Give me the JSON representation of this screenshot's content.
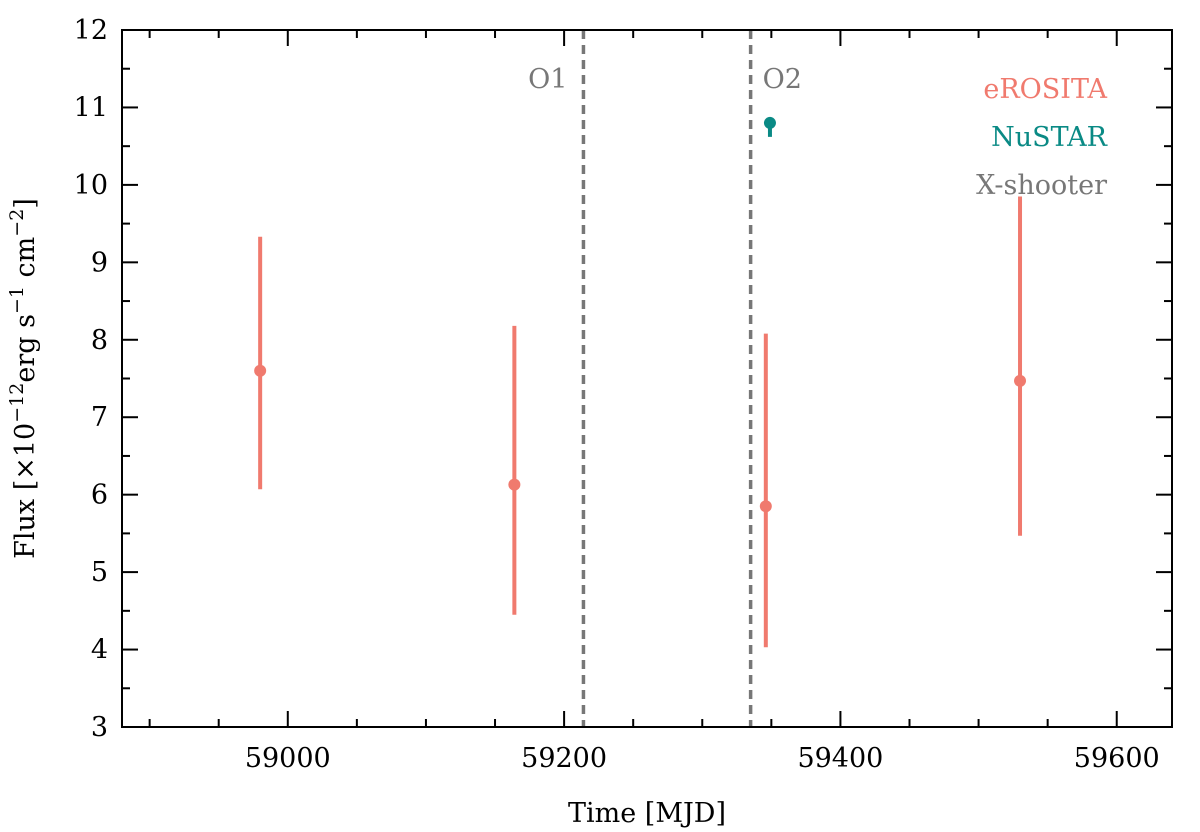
{
  "chart_data": {
    "type": "scatter",
    "xlabel": "Time [MJD]",
    "ylabel": {
      "prefix": "Flux [×10",
      "exp1": "−12",
      "mid1": "erg s",
      "exp2": "−1",
      "mid2": " cm",
      "exp3": "−2",
      "suffix": "]"
    },
    "xlim": [
      58880,
      59640
    ],
    "ylim": [
      3,
      12
    ],
    "xticks": [
      59000,
      59200,
      59400,
      59600
    ],
    "xtick_labels": [
      "59000",
      "59200",
      "59400",
      "59600"
    ],
    "yticks": [
      3,
      4,
      5,
      6,
      7,
      8,
      9,
      10,
      11,
      12
    ],
    "ytick_labels": [
      "3",
      "4",
      "5",
      "6",
      "7",
      "8",
      "9",
      "10",
      "11",
      "12"
    ],
    "x_minor_step": 50,
    "y_minor_step": 0.5,
    "grid": false,
    "legend_position": "top-right",
    "series": [
      {
        "name": "eROSITA",
        "color": "#f07a6e",
        "points": [
          {
            "x": 58980,
            "y": 7.6,
            "ylo": 6.07,
            "yhi": 9.33
          },
          {
            "x": 59164,
            "y": 6.13,
            "ylo": 4.45,
            "yhi": 8.18
          },
          {
            "x": 59346,
            "y": 5.85,
            "ylo": 4.03,
            "yhi": 8.08
          },
          {
            "x": 59530,
            "y": 7.47,
            "ylo": 5.47,
            "yhi": 9.85
          }
        ]
      },
      {
        "name": "NuSTAR",
        "color": "#0a8a85",
        "points": [
          {
            "x": 59349,
            "y": 10.8,
            "ylo": 10.62,
            "yhi": 10.86
          }
        ]
      }
    ],
    "vlines": [
      {
        "name": "X-shooter",
        "color": "#777777",
        "label": "O1",
        "x": 59214
      },
      {
        "name": "X-shooter",
        "color": "#777777",
        "label": "O2",
        "x": 59335
      }
    ],
    "legend": [
      {
        "label": "eROSITA",
        "color": "#f07a6e"
      },
      {
        "label": "NuSTAR",
        "color": "#0a8a85"
      },
      {
        "label": "X-shooter",
        "color": "#777777"
      }
    ]
  }
}
